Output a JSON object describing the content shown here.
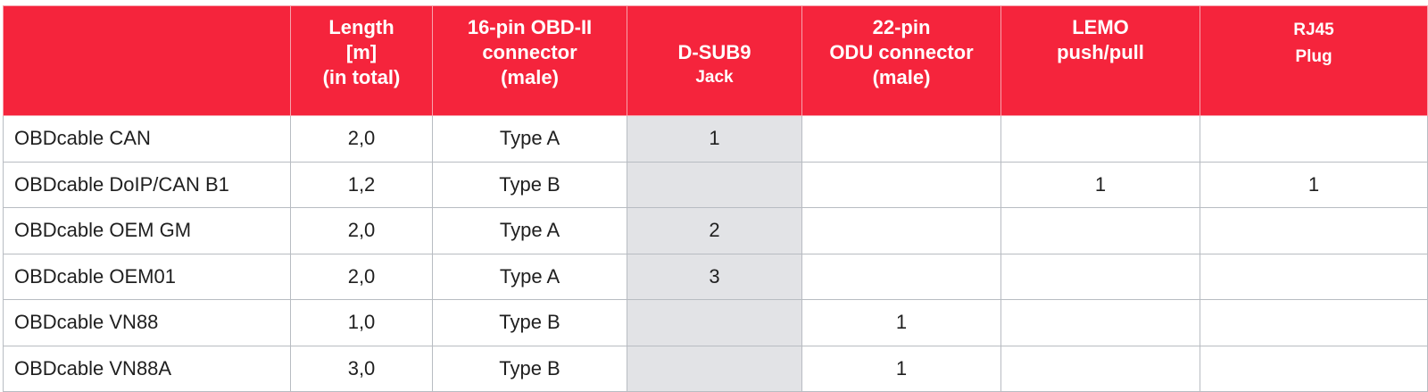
{
  "table": {
    "headers": [
      "",
      "Length\n[m]\n(in total)",
      "16-pin OBD-II\nconnector\n(male)",
      "D-SUB9",
      "22-pin\nODU connector\n(male)",
      "LEMO\npush/pull",
      "RJ45\nPlug"
    ],
    "dsub_sub": "Jack",
    "rows": [
      [
        "OBDcable CAN",
        "2,0",
        "Type A",
        "1",
        "",
        "",
        ""
      ],
      [
        "OBDcable DoIP/CAN B1",
        "1,2",
        "Type B",
        "",
        "",
        "1",
        "1"
      ],
      [
        "OBDcable OEM GM",
        "2,0",
        "Type A",
        "2",
        "",
        "",
        ""
      ],
      [
        "OBDcable OEM01",
        "2,0",
        "Type A",
        "3",
        "",
        "",
        ""
      ],
      [
        "OBDcable VN88",
        "1,0",
        "Type B",
        "",
        "1",
        "",
        ""
      ],
      [
        "OBDcable VN88A",
        "3,0",
        "Type B",
        "",
        "1",
        "",
        ""
      ]
    ]
  },
  "colors": {
    "header_bg": "#f5243c",
    "header_text": "#ffffff",
    "shaded_column": "#e2e3e6",
    "border": "#b8bcc2"
  }
}
